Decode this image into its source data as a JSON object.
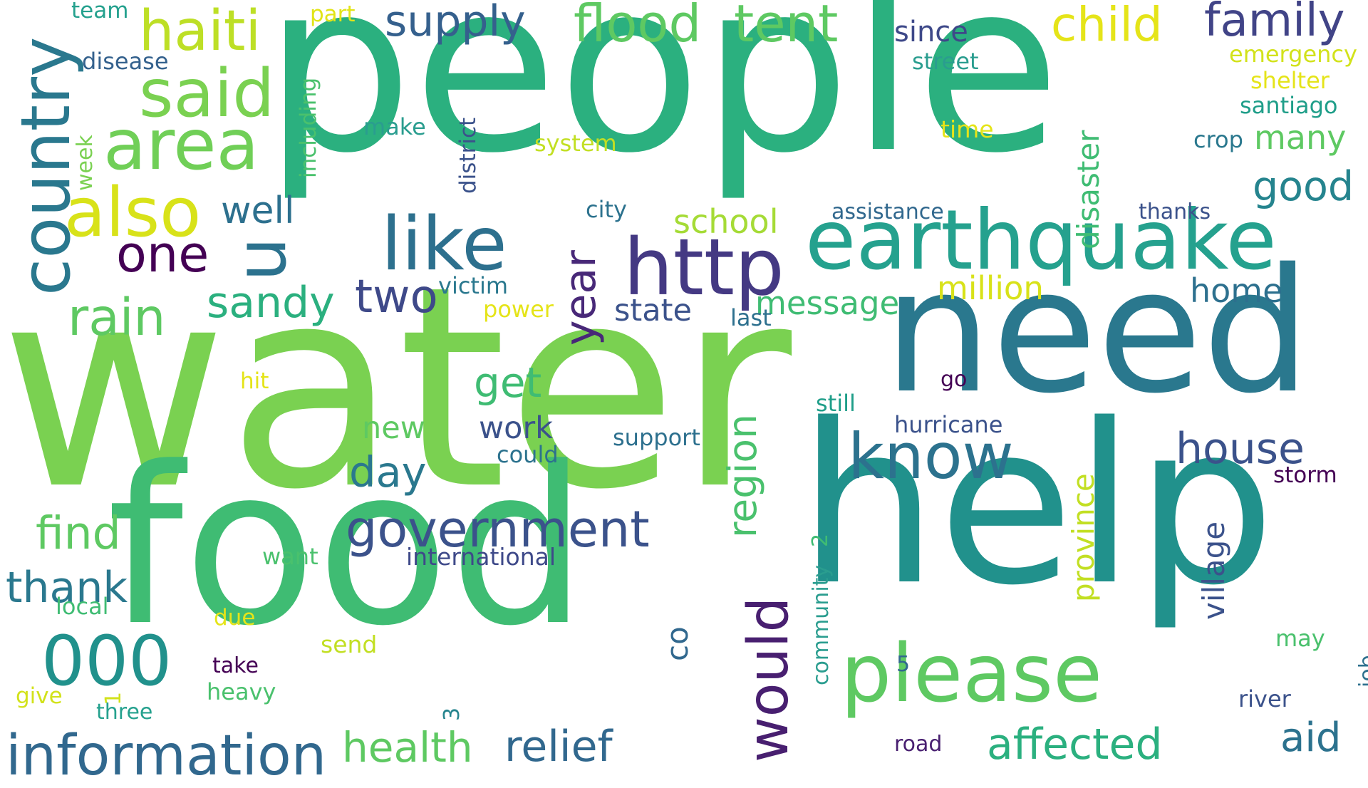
{
  "words": [
    {
      "text": "water",
      "color": "#7ad151"
    },
    {
      "text": "people",
      "color": "#2bb07f"
    },
    {
      "text": "food",
      "color": "#3fbc73"
    },
    {
      "text": "help",
      "color": "#21918c"
    },
    {
      "text": "need",
      "color": "#2a788e"
    },
    {
      "text": "earthquake",
      "color": "#25a18e"
    },
    {
      "text": "please",
      "color": "#5ec962"
    },
    {
      "text": "http",
      "color": "#443983"
    },
    {
      "text": "know",
      "color": "#2c728e"
    },
    {
      "text": "would",
      "color": "#481f70"
    },
    {
      "text": "also",
      "color": "#d8e219"
    },
    {
      "text": "area",
      "color": "#70cf57"
    },
    {
      "text": "country",
      "color": "#2a788e"
    },
    {
      "text": "like",
      "color": "#2d708e"
    },
    {
      "text": "information",
      "color": "#31688e"
    },
    {
      "text": "government",
      "color": "#3b528b"
    },
    {
      "text": "000",
      "color": "#21918c"
    },
    {
      "text": "said",
      "color": "#7ad151"
    },
    {
      "text": "haiti",
      "color": "#bddf26"
    },
    {
      "text": "flood",
      "color": "#5ec962"
    },
    {
      "text": "tent",
      "color": "#5ec962"
    },
    {
      "text": "supply",
      "color": "#35608d"
    },
    {
      "text": "child",
      "color": "#e5e419"
    },
    {
      "text": "family",
      "color": "#414487"
    },
    {
      "text": "u",
      "color": "#2c728e"
    },
    {
      "text": "one",
      "color": "#440154"
    },
    {
      "text": "rain",
      "color": "#5ec962"
    },
    {
      "text": "sandy",
      "color": "#2bb07f"
    },
    {
      "text": "two",
      "color": "#3e4989"
    },
    {
      "text": "year",
      "color": "#482878"
    },
    {
      "text": "get",
      "color": "#3fbc73"
    },
    {
      "text": "day",
      "color": "#2a788e"
    },
    {
      "text": "find",
      "color": "#5ec962"
    },
    {
      "text": "thank",
      "color": "#2a788e"
    },
    {
      "text": "health",
      "color": "#5ec962"
    },
    {
      "text": "relief",
      "color": "#31688e"
    },
    {
      "text": "affected",
      "color": "#2bb07f"
    },
    {
      "text": "aid",
      "color": "#2c728e"
    },
    {
      "text": "house",
      "color": "#3b528b"
    },
    {
      "text": "good",
      "color": "#25848e"
    },
    {
      "text": "well",
      "color": "#2d708e"
    },
    {
      "text": "region",
      "color": "#4ac16d"
    },
    {
      "text": "school",
      "color": "#a5db36"
    },
    {
      "text": "message",
      "color": "#3fbc73"
    },
    {
      "text": "million",
      "color": "#d8e219"
    },
    {
      "text": "home",
      "color": "#2d708e"
    },
    {
      "text": "state",
      "color": "#3b528b"
    },
    {
      "text": "many",
      "color": "#5ec962"
    },
    {
      "text": "disaster",
      "color": "#3fbc73"
    },
    {
      "text": "province",
      "color": "#c2df23"
    },
    {
      "text": "village",
      "color": "#3b528b"
    },
    {
      "text": "work",
      "color": "#3b528b"
    },
    {
      "text": "new",
      "color": "#5ec962"
    },
    {
      "text": "since",
      "color": "#3e4989"
    },
    {
      "text": "street",
      "color": "#2a9d8f"
    },
    {
      "text": "emergency",
      "color": "#d2e21b"
    },
    {
      "text": "shelter",
      "color": "#e5e419"
    },
    {
      "text": "santiago",
      "color": "#1f9e89"
    },
    {
      "text": "crop",
      "color": "#2a788e"
    },
    {
      "text": "time",
      "color": "#e5e419"
    },
    {
      "text": "team",
      "color": "#25a18e"
    },
    {
      "text": "part",
      "color": "#e2e418"
    },
    {
      "text": "disease",
      "color": "#34618d"
    },
    {
      "text": "including",
      "color": "#4ac16d"
    },
    {
      "text": "make",
      "color": "#2a9d8f"
    },
    {
      "text": "district",
      "color": "#3b528b"
    },
    {
      "text": "system",
      "color": "#c2df23"
    },
    {
      "text": "week",
      "color": "#7ad151"
    },
    {
      "text": "city",
      "color": "#2c728e"
    },
    {
      "text": "assistance",
      "color": "#31688e"
    },
    {
      "text": "thanks",
      "color": "#3b528b"
    },
    {
      "text": "victim",
      "color": "#2a788e"
    },
    {
      "text": "power",
      "color": "#e5e419"
    },
    {
      "text": "last",
      "color": "#2d708e"
    },
    {
      "text": "go",
      "color": "#440154"
    },
    {
      "text": "hit",
      "color": "#e5e419"
    },
    {
      "text": "still",
      "color": "#1f9e89"
    },
    {
      "text": "hurricane",
      "color": "#3b528b"
    },
    {
      "text": "support",
      "color": "#2d708e"
    },
    {
      "text": "could",
      "color": "#2c728e"
    },
    {
      "text": "storm",
      "color": "#440154"
    },
    {
      "text": "2",
      "color": "#3fbc73"
    },
    {
      "text": "international",
      "color": "#3e4989"
    },
    {
      "text": "want",
      "color": "#4ac16d"
    },
    {
      "text": "local",
      "color": "#3fbc73"
    },
    {
      "text": "due",
      "color": "#e5e419"
    },
    {
      "text": "co",
      "color": "#31688e"
    },
    {
      "text": "community",
      "color": "#2a9d8f"
    },
    {
      "text": "send",
      "color": "#c2df23"
    },
    {
      "text": "take",
      "color": "#440154"
    },
    {
      "text": "heavy",
      "color": "#4ac16d"
    },
    {
      "text": "give",
      "color": "#d2e21b"
    },
    {
      "text": "1",
      "color": "#d2e21b"
    },
    {
      "text": "three",
      "color": "#25a18e"
    },
    {
      "text": "3",
      "color": "#25848e"
    },
    {
      "text": "5",
      "color": "#31688e"
    },
    {
      "text": "road",
      "color": "#481f70"
    },
    {
      "text": "may",
      "color": "#4ac16d"
    },
    {
      "text": "job",
      "color": "#2d708e"
    },
    {
      "text": "river",
      "color": "#3b528b"
    }
  ]
}
